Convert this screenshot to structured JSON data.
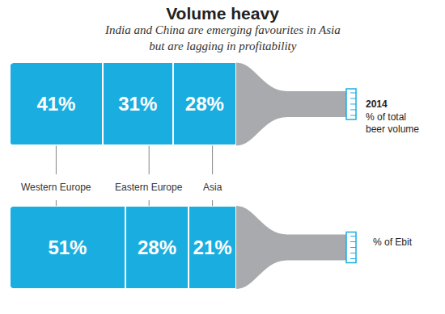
{
  "chart_data": {
    "type": "bar",
    "title": "Volume heavy",
    "subtitle": "India and China are emerging favourites in Asia\nbut are lagging in profitability",
    "categories": [
      "% of total beer volume",
      "% of Ebit"
    ],
    "annotations": [
      "2014"
    ],
    "series": [
      {
        "name": "Western Europe",
        "values": [
          41,
          51
        ],
        "value_labels": [
          "41%",
          "51%"
        ]
      },
      {
        "name": "Eastern Europe",
        "values": [
          31,
          28
        ],
        "value_labels": [
          "31%",
          "28%"
        ]
      },
      {
        "name": "Asia",
        "values": [
          28,
          21
        ],
        "value_labels": [
          "28%",
          "21%"
        ]
      }
    ],
    "color": "#1aaee0",
    "xlim": [
      0,
      100
    ],
    "orientation": "horizontal",
    "stacked": true,
    "data_labels": true,
    "tick_labels": false,
    "grid": false
  }
}
